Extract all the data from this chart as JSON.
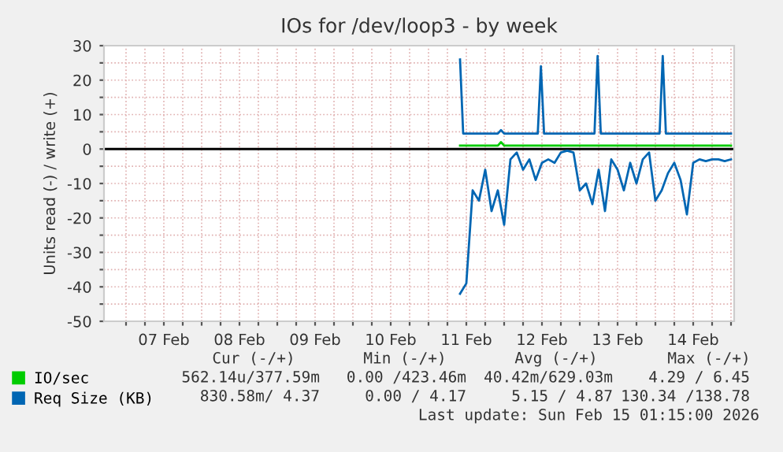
{
  "chart_data": {
    "type": "line",
    "title": "IOs for /dev/loop3 - by week",
    "ylabel": "Units read (-) / write (+)",
    "xlim": [
      "2026-02-06T17:00",
      "2026-02-15T01:00"
    ],
    "xticks": [
      {
        "value": "2026-02-07T00:00",
        "label": null
      },
      {
        "value": "2026-02-07T06:00",
        "label": null
      },
      {
        "value": "2026-02-07T12:00",
        "label": "07 Feb"
      },
      {
        "value": "2026-02-07T18:00",
        "label": null
      },
      {
        "value": "2026-02-08T00:00",
        "label": null
      },
      {
        "value": "2026-02-08T06:00",
        "label": null
      },
      {
        "value": "2026-02-08T12:00",
        "label": "08 Feb"
      },
      {
        "value": "2026-02-08T18:00",
        "label": null
      },
      {
        "value": "2026-02-09T00:00",
        "label": null
      },
      {
        "value": "2026-02-09T06:00",
        "label": null
      },
      {
        "value": "2026-02-09T12:00",
        "label": "09 Feb"
      },
      {
        "value": "2026-02-09T18:00",
        "label": null
      },
      {
        "value": "2026-02-10T00:00",
        "label": null
      },
      {
        "value": "2026-02-10T06:00",
        "label": null
      },
      {
        "value": "2026-02-10T12:00",
        "label": "10 Feb"
      },
      {
        "value": "2026-02-10T18:00",
        "label": null
      },
      {
        "value": "2026-02-11T00:00",
        "label": null
      },
      {
        "value": "2026-02-11T06:00",
        "label": null
      },
      {
        "value": "2026-02-11T12:00",
        "label": "11 Feb"
      },
      {
        "value": "2026-02-11T18:00",
        "label": null
      },
      {
        "value": "2026-02-12T00:00",
        "label": null
      },
      {
        "value": "2026-02-12T06:00",
        "label": null
      },
      {
        "value": "2026-02-12T12:00",
        "label": "12 Feb"
      },
      {
        "value": "2026-02-12T18:00",
        "label": null
      },
      {
        "value": "2026-02-13T00:00",
        "label": null
      },
      {
        "value": "2026-02-13T06:00",
        "label": null
      },
      {
        "value": "2026-02-13T12:00",
        "label": "13 Feb"
      },
      {
        "value": "2026-02-13T18:00",
        "label": null
      },
      {
        "value": "2026-02-14T00:00",
        "label": null
      },
      {
        "value": "2026-02-14T06:00",
        "label": null
      },
      {
        "value": "2026-02-14T12:00",
        "label": "14 Feb"
      },
      {
        "value": "2026-02-14T18:00",
        "label": null
      },
      {
        "value": "2026-02-15T00:00",
        "label": null
      }
    ],
    "ylim": [
      -50,
      30
    ],
    "yticks": [
      -50,
      {
        "value": -45,
        "label": null
      },
      -40,
      {
        "value": -35,
        "label": null
      },
      -30,
      {
        "value": -25,
        "label": null
      },
      -20,
      {
        "value": -15,
        "label": null
      },
      -10,
      {
        "value": -5,
        "label": null
      },
      0,
      {
        "value": 5,
        "label": null
      },
      10,
      {
        "value": 15,
        "label": null
      },
      20,
      {
        "value": 25,
        "label": null
      },
      30
    ],
    "grid": true,
    "legend": "bottom",
    "ref_lines": [
      {
        "axis": "y",
        "value": 0,
        "color": "#000000"
      }
    ],
    "series": [
      {
        "name": "IO/sec",
        "color": "#00cc00",
        "x": [
          "2026-02-11T10:00",
          "2026-02-11T22:00",
          "2026-02-11T23:00",
          "2026-02-12T00:00",
          "2026-02-15T00:00"
        ],
        "values": [
          1,
          1,
          2,
          1,
          1
        ]
      },
      {
        "name": "Req Size (KB)",
        "color": "#0066b3",
        "x": [
          "2026-02-11T10:00",
          "2026-02-11T11:00",
          "2026-02-11T22:00",
          "2026-02-11T23:00",
          "2026-02-12T00:00",
          "2026-02-12T10:40",
          "2026-02-12T11:40",
          "2026-02-12T12:40",
          "2026-02-13T04:40",
          "2026-02-13T05:40",
          "2026-02-13T06:40",
          "2026-02-14T01:20",
          "2026-02-14T02:20",
          "2026-02-14T03:20",
          "2026-02-15T00:00"
        ],
        "values": [
          26,
          4.5,
          4.5,
          5.5,
          4.5,
          4.5,
          24,
          4.5,
          4.5,
          27,
          4.5,
          4.5,
          27,
          4.5,
          4.5
        ]
      },
      {
        "color": "#0066b3",
        "x": [
          "2026-02-11T10:00",
          "2026-02-11T12:00",
          "2026-02-11T14:00",
          "2026-02-11T16:00",
          "2026-02-11T18:00",
          "2026-02-11T20:00",
          "2026-02-11T22:00",
          "2026-02-12T00:00",
          "2026-02-12T02:00",
          "2026-02-12T04:00",
          "2026-02-12T06:00",
          "2026-02-12T08:00",
          "2026-02-12T10:00",
          "2026-02-12T12:00",
          "2026-02-12T14:00",
          "2026-02-12T16:00",
          "2026-02-12T18:00",
          "2026-02-12T20:00",
          "2026-02-12T22:00",
          "2026-02-13T00:00",
          "2026-02-13T02:00",
          "2026-02-13T04:00",
          "2026-02-13T06:00",
          "2026-02-13T08:00",
          "2026-02-13T10:00",
          "2026-02-13T12:00",
          "2026-02-13T14:00",
          "2026-02-13T16:00",
          "2026-02-13T18:00",
          "2026-02-13T20:00",
          "2026-02-13T22:00",
          "2026-02-14T00:00",
          "2026-02-14T02:00",
          "2026-02-14T04:00",
          "2026-02-14T06:00",
          "2026-02-14T08:00",
          "2026-02-14T10:00",
          "2026-02-14T12:00",
          "2026-02-14T14:00",
          "2026-02-14T16:00",
          "2026-02-14T18:00",
          "2026-02-14T20:00",
          "2026-02-14T22:00",
          "2026-02-15T00:00"
        ],
        "values": [
          -42,
          -39,
          -12,
          -15,
          -6,
          -18,
          -12,
          -22,
          -3,
          -1,
          -6,
          -3,
          -9,
          -4,
          -3,
          -4,
          -1,
          -0.5,
          -1,
          -12,
          -10,
          -16,
          -6,
          -18,
          -3,
          -6,
          -12,
          -4,
          -10,
          -3,
          -1,
          -15,
          -12,
          -7,
          -4,
          -9,
          -19,
          -4,
          -3,
          -3.5,
          -3,
          -3,
          -3.5,
          -3
        ]
      }
    ],
    "annotations": [
      "Cur (-/+)",
      "Min (-/+)",
      "Avg (-/+)",
      "Max (-/+)",
      "562.14u/377.59m",
      "0.00 /423.46m",
      "40.42m/629.03m",
      "4.29 / 6.45",
      "830.58m/ 4.37",
      "0.00 / 4.17",
      "5.15 / 4.87",
      "130.34 /138.78",
      "Last update: Sun Feb 15 01:15:00 2026"
    ]
  }
}
